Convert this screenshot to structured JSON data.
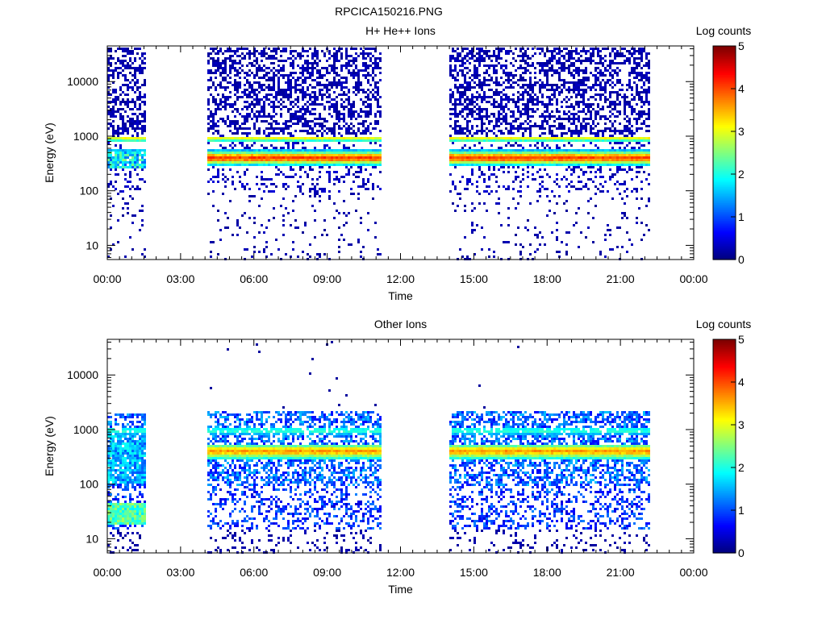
{
  "figure": {
    "title": "RPCICA150216.PNG"
  },
  "chart_data": [
    {
      "type": "heatmap",
      "title": "H+ He++ Ions",
      "xlabel": "Time",
      "ylabel": "Energy (eV)",
      "x_tick_labels": [
        "00:00",
        "03:00",
        "06:00",
        "09:00",
        "12:00",
        "15:00",
        "18:00",
        "21:00",
        "00:00"
      ],
      "x_ticks_hours": [
        0,
        3,
        6,
        9,
        12,
        15,
        18,
        21,
        24
      ],
      "xlim_hours": [
        0,
        24
      ],
      "y_tick_labels": [
        "10",
        "100",
        "1000",
        "10000"
      ],
      "y_ticks": [
        10,
        100,
        1000,
        10000
      ],
      "ylim": [
        5.5,
        45000
      ],
      "yscale": "log",
      "colorbar": {
        "label": "Log counts",
        "tick_labels": [
          "0",
          "1",
          "2",
          "3",
          "4",
          "5"
        ],
        "range": [
          0,
          5
        ]
      },
      "data_intervals_hours": [
        [
          0.0,
          1.6
        ],
        [
          4.1,
          11.2
        ],
        [
          14.0,
          22.2
        ]
      ],
      "bands": [
        {
          "energy_center": 950,
          "log_counts_peak": 2.8
        },
        {
          "energy_center": 420,
          "log_counts_peak": 4.0
        }
      ]
    },
    {
      "type": "heatmap",
      "title": "Other Ions",
      "xlabel": "Time",
      "ylabel": "Energy (eV)",
      "x_tick_labels": [
        "00:00",
        "03:00",
        "06:00",
        "09:00",
        "12:00",
        "15:00",
        "18:00",
        "21:00",
        "00:00"
      ],
      "x_ticks_hours": [
        0,
        3,
        6,
        9,
        12,
        15,
        18,
        21,
        24
      ],
      "xlim_hours": [
        0,
        24
      ],
      "y_tick_labels": [
        "10",
        "100",
        "1000",
        "10000"
      ],
      "y_ticks": [
        10,
        100,
        1000,
        10000
      ],
      "ylim": [
        5.5,
        45000
      ],
      "yscale": "log",
      "colorbar": {
        "label": "Log counts",
        "tick_labels": [
          "0",
          "1",
          "2",
          "3",
          "4",
          "5"
        ],
        "range": [
          0,
          5
        ]
      },
      "data_intervals_hours": [
        [
          0.0,
          1.6
        ],
        [
          4.1,
          11.2
        ],
        [
          14.0,
          22.2
        ]
      ],
      "bands": [
        {
          "energy_center": 420,
          "log_counts_peak": 3.2
        },
        {
          "energy_center": 1000,
          "log_counts_peak": 1.8
        },
        {
          "energy_center": 30,
          "log_counts_peak": 2.8
        }
      ]
    }
  ]
}
